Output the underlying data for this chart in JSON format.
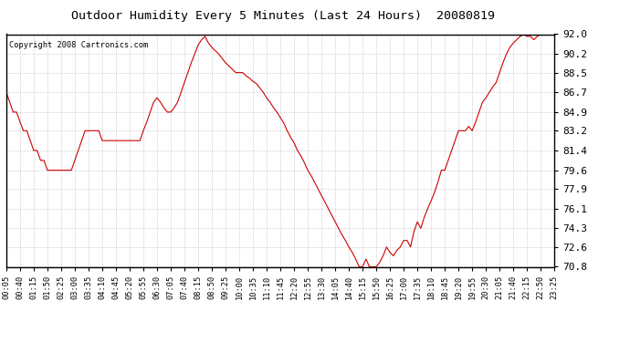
{
  "title": "Outdoor Humidity Every 5 Minutes (Last 24 Hours)  20080819",
  "copyright": "Copyright 2008 Cartronics.com",
  "line_color": "#cc0000",
  "bg_color": "#ffffff",
  "plot_bg_color": "#ffffff",
  "grid_color": "#999999",
  "yticks": [
    70.8,
    72.6,
    74.3,
    76.1,
    77.9,
    79.6,
    81.4,
    83.2,
    84.9,
    86.7,
    88.5,
    90.2,
    92.0
  ],
  "ylim": [
    70.8,
    92.0
  ],
  "x_labels": [
    "00:05",
    "00:40",
    "01:15",
    "01:50",
    "02:25",
    "03:00",
    "03:35",
    "04:10",
    "04:45",
    "05:20",
    "05:55",
    "06:30",
    "07:05",
    "07:40",
    "08:15",
    "08:50",
    "09:25",
    "10:00",
    "10:35",
    "11:10",
    "11:45",
    "12:20",
    "12:55",
    "13:30",
    "14:05",
    "14:40",
    "15:15",
    "15:50",
    "16:25",
    "17:00",
    "17:35",
    "18:10",
    "18:45",
    "19:20",
    "19:55",
    "20:30",
    "21:05",
    "21:40",
    "22:15",
    "22:50",
    "23:25"
  ],
  "y_values": [
    86.7,
    85.8,
    84.9,
    84.9,
    84.0,
    83.2,
    83.2,
    82.3,
    81.4,
    81.4,
    80.5,
    80.5,
    79.6,
    79.6,
    79.6,
    79.6,
    79.6,
    79.6,
    79.6,
    79.6,
    80.5,
    81.4,
    82.3,
    83.2,
    83.2,
    83.2,
    83.2,
    83.2,
    82.3,
    82.3,
    82.3,
    82.3,
    82.3,
    82.3,
    82.3,
    82.3,
    82.3,
    82.3,
    82.3,
    82.3,
    83.2,
    84.0,
    84.9,
    85.8,
    86.2,
    85.8,
    85.3,
    84.9,
    84.9,
    85.3,
    85.8,
    86.7,
    87.6,
    88.5,
    89.4,
    90.2,
    91.0,
    91.5,
    91.8,
    91.2,
    90.8,
    90.5,
    90.2,
    89.8,
    89.4,
    89.1,
    88.8,
    88.5,
    88.5,
    88.5,
    88.2,
    88.0,
    87.7,
    87.5,
    87.1,
    86.7,
    86.2,
    85.8,
    85.3,
    84.9,
    84.4,
    83.9,
    83.2,
    82.6,
    82.1,
    81.4,
    80.9,
    80.3,
    79.6,
    79.1,
    78.5,
    77.9,
    77.3,
    76.7,
    76.1,
    75.5,
    74.9,
    74.3,
    73.7,
    73.2,
    72.6,
    72.1,
    71.5,
    70.8,
    70.8,
    71.5,
    70.8,
    70.8,
    70.8,
    71.2,
    71.8,
    72.6,
    72.1,
    71.8,
    72.3,
    72.6,
    73.2,
    73.2,
    72.6,
    74.0,
    74.9,
    74.3,
    75.3,
    76.1,
    76.8,
    77.6,
    78.5,
    79.6,
    79.6,
    80.5,
    81.4,
    82.3,
    83.2,
    83.2,
    83.2,
    83.6,
    83.2,
    84.0,
    84.9,
    85.8,
    86.2,
    86.7,
    87.2,
    87.6,
    88.5,
    89.4,
    90.2,
    90.8,
    91.2,
    91.5,
    91.8,
    92.0,
    91.8,
    91.8,
    91.5,
    91.8,
    92.0,
    92.0,
    92.0,
    92.0,
    92.0
  ]
}
